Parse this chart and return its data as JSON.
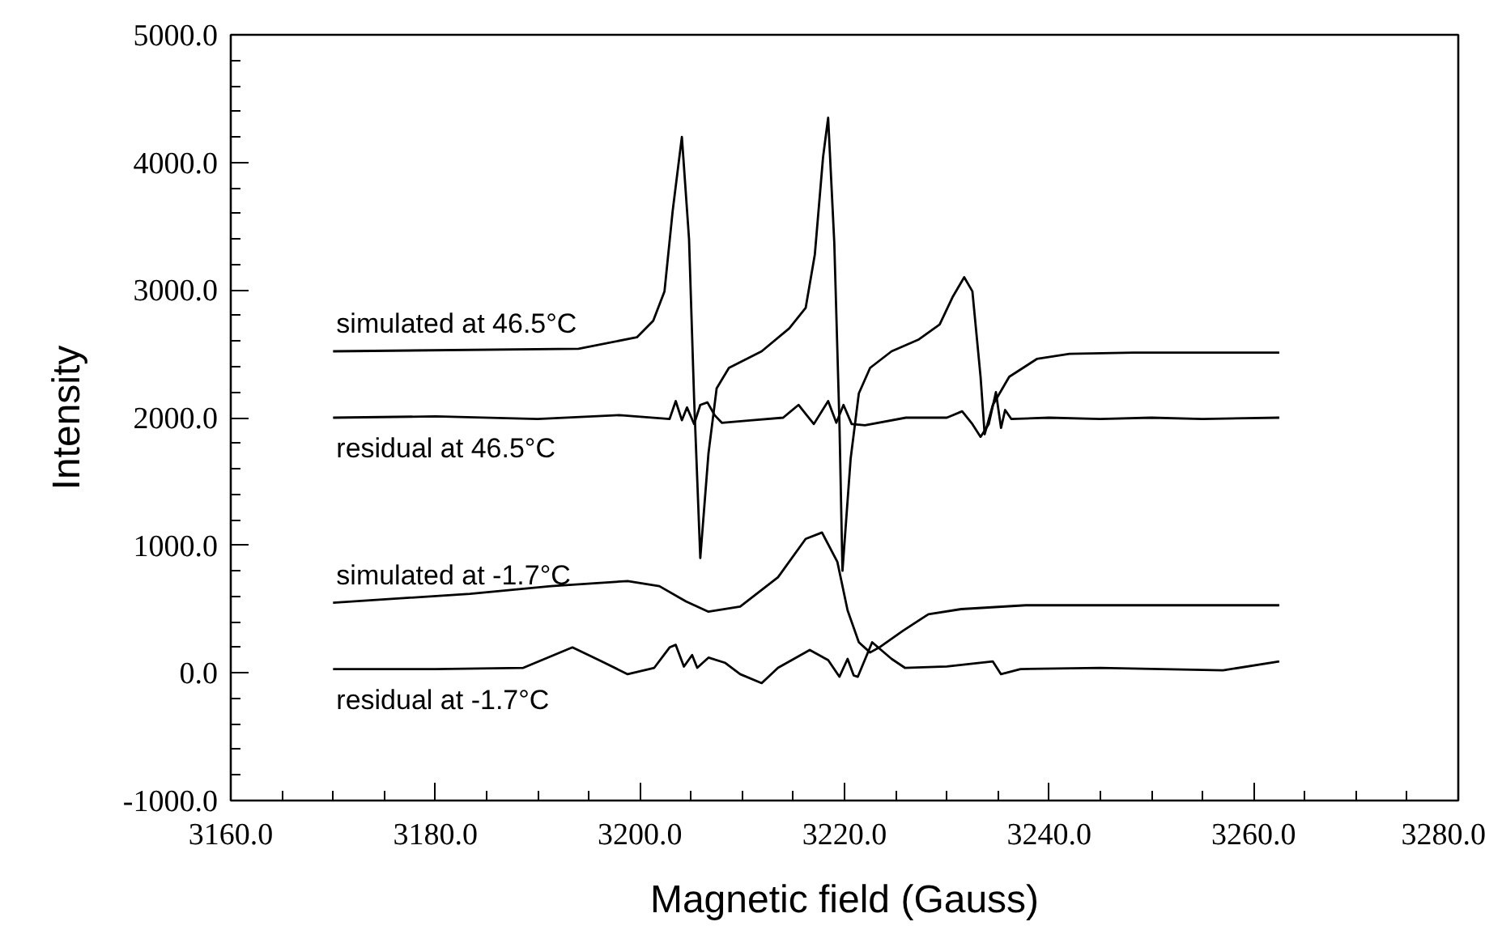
{
  "chart_data": {
    "type": "line",
    "xlabel": "Magnetic field (Gauss)",
    "ylabel": "Intensity",
    "xlim": [
      3160,
      3280
    ],
    "ylim": [
      -1000,
      5000
    ],
    "xticks": [
      {
        "value": 3160,
        "label": "3160.0"
      },
      {
        "value": 3180,
        "label": "3180.0"
      },
      {
        "value": 3200,
        "label": "3200.0"
      },
      {
        "value": 3220,
        "label": "3220.0"
      },
      {
        "value": 3240,
        "label": "3240.0"
      },
      {
        "value": 3260,
        "label": "3260.0"
      },
      {
        "value": 3280,
        "label": "3280.0"
      }
    ],
    "yticks": [
      {
        "value": -1000,
        "label": "-1000.0"
      },
      {
        "value": 0,
        "label": "0.0"
      },
      {
        "value": 1000,
        "label": "1000.0"
      },
      {
        "value": 2000,
        "label": "2000.0"
      },
      {
        "value": 3000,
        "label": "3000.0"
      },
      {
        "value": 4000,
        "label": "4000.0"
      },
      {
        "value": 5000,
        "label": "5000.0"
      }
    ],
    "grid": false,
    "marker": "none",
    "line_style": "solid",
    "series": [
      {
        "color": "#000000",
        "x": [
          3170,
          3194,
          3199.7,
          3201.3,
          3202.4,
          3203.2,
          3204.1,
          3204.8,
          3205.3,
          3205.9,
          3206.7,
          3207.5,
          3208.7,
          3211.9,
          3214.6,
          3216.2,
          3217.1,
          3217.9,
          3218.4,
          3219.0,
          3219.5,
          3219.8,
          3220.6,
          3221.4,
          3222.5,
          3224.6,
          3227.2,
          3229.3,
          3230.6,
          3231.7,
          3232.5,
          3233.3,
          3233.7,
          3234.5,
          3236.1,
          3238.8,
          3242,
          3248.3,
          3262.5
        ],
        "values": [
          2520,
          2540,
          2630,
          2760,
          2990,
          3620,
          4200,
          3400,
          2140,
          900,
          1720,
          2230,
          2390,
          2520,
          2700,
          2860,
          3280,
          4040,
          4350,
          3370,
          1970,
          800,
          1680,
          2190,
          2390,
          2520,
          2610,
          2730,
          2950,
          3100,
          2990,
          2320,
          1870,
          2100,
          2320,
          2460,
          2500,
          2510,
          2510
        ]
      },
      {
        "color": "#000000",
        "x": [
          3170,
          3180,
          3190,
          3198,
          3202.9,
          3203.5,
          3204.1,
          3204.6,
          3205.3,
          3205.9,
          3206.6,
          3207.3,
          3208,
          3211,
          3214,
          3215.5,
          3217,
          3218.4,
          3219.2,
          3219.9,
          3220.7,
          3222,
          3226,
          3230,
          3231.5,
          3232.5,
          3233.3,
          3234.1,
          3234.8,
          3235.3,
          3235.7,
          3236.3,
          3240,
          3245,
          3250,
          3255,
          3262.5
        ],
        "values": [
          2000,
          2010,
          1990,
          2020,
          1990,
          2130,
          1980,
          2080,
          1950,
          2100,
          2120,
          2020,
          1960,
          1980,
          2000,
          2100,
          1950,
          2130,
          1960,
          2100,
          1950,
          1940,
          2000,
          2000,
          2050,
          1950,
          1850,
          1950,
          2200,
          1920,
          2060,
          1990,
          2000,
          1990,
          2000,
          1990,
          2000
        ]
      },
      {
        "color": "#000000",
        "x": [
          3170,
          3183.4,
          3191.3,
          3198.8,
          3201.9,
          3204.5,
          3206.7,
          3209.8,
          3213.5,
          3216.2,
          3217.8,
          3219.3,
          3220.3,
          3221.4,
          3222.5,
          3223.4,
          3225.7,
          3228.2,
          3231.4,
          3237.7,
          3262.5
        ],
        "values": [
          550,
          620,
          680,
          720,
          680,
          560,
          480,
          520,
          750,
          1050,
          1100,
          870,
          490,
          240,
          160,
          200,
          330,
          460,
          500,
          530,
          530
        ]
      },
      {
        "color": "#000000",
        "x": [
          3170,
          3180,
          3188.6,
          3193.4,
          3196,
          3198.8,
          3201.4,
          3202.9,
          3203.5,
          3204.3,
          3205.1,
          3205.6,
          3206.7,
          3208.3,
          3209.8,
          3211.9,
          3213.5,
          3216.6,
          3218.4,
          3219.5,
          3220.3,
          3220.9,
          3221.3,
          3222.7,
          3224.6,
          3225.9,
          3230,
          3234.5,
          3235.3,
          3237.2,
          3245,
          3257,
          3262.5
        ],
        "values": [
          30,
          30,
          40,
          200,
          100,
          -10,
          40,
          200,
          220,
          50,
          140,
          40,
          120,
          80,
          -10,
          -80,
          40,
          180,
          100,
          -30,
          110,
          -20,
          -30,
          240,
          110,
          40,
          50,
          90,
          -10,
          30,
          40,
          20,
          90
        ]
      }
    ],
    "annotations": [
      "simulated at 46.5°C",
      "residual at 46.5°C",
      "simulated at -1.7°C",
      "residual at -1.7°C"
    ]
  }
}
